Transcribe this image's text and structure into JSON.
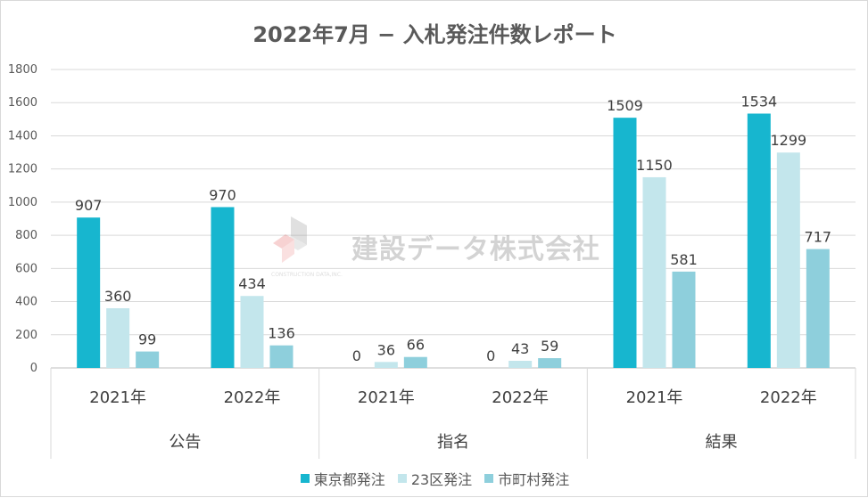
{
  "chart_data": {
    "type": "bar",
    "title": "2022年7月 − 入札発注件数レポート",
    "groups": [
      "公告",
      "指名",
      "結果"
    ],
    "categories": [
      "2021年",
      "2022年",
      "2021年",
      "2022年",
      "2021年",
      "2022年"
    ],
    "series": [
      {
        "name": "東京都発注",
        "color": "#17b6cf",
        "values": [
          907,
          970,
          0,
          0,
          1509,
          1534
        ]
      },
      {
        "name": "23区発注",
        "color": "#c3e6ec",
        "values": [
          360,
          434,
          36,
          43,
          1150,
          1299
        ]
      },
      {
        "name": "市町村発注",
        "color": "#8ecfdc",
        "values": [
          99,
          136,
          66,
          59,
          581,
          717
        ]
      }
    ],
    "ylim": [
      0,
      1800
    ],
    "yticks": [
      0,
      200,
      400,
      600,
      800,
      1000,
      1200,
      1400,
      1600,
      1800
    ],
    "grid": true,
    "legend_position": "bottom"
  },
  "watermark": {
    "text": "建設データ株式会社",
    "sub": "CONSTRUCTION DATA,INC."
  }
}
